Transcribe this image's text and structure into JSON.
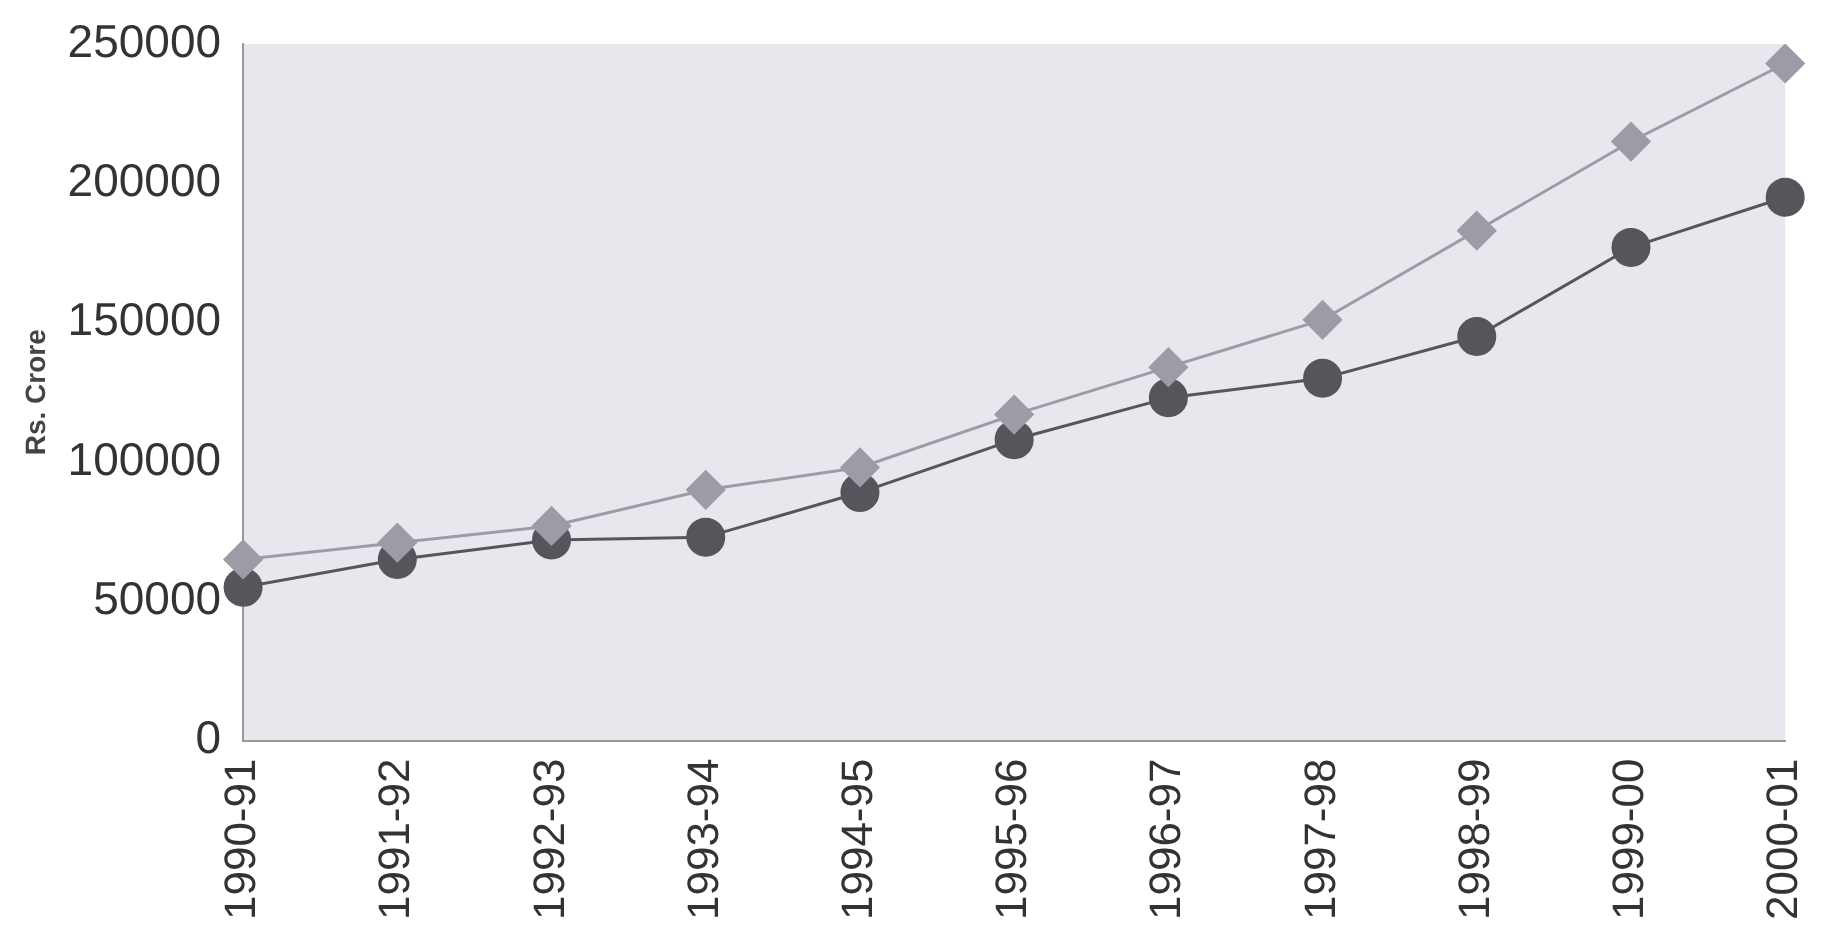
{
  "chart_data": {
    "type": "line",
    "ylabel": "Rs. Crore",
    "categories": [
      "1990-91",
      "1991-92",
      "1992-93",
      "1993-94",
      "1994-95",
      "1995-96",
      "1996-97",
      "1997-98",
      "1998-99",
      "1999-00",
      "2000-01"
    ],
    "series": [
      {
        "color": "#9c9ca6",
        "marker": "diamond",
        "values": [
          65000,
          71000,
          77000,
          90000,
          98000,
          117000,
          134000,
          151000,
          183000,
          215000,
          243000
        ]
      },
      {
        "color": "#55555c",
        "marker": "circle",
        "values": [
          55000,
          65000,
          72000,
          73000,
          89000,
          108000,
          123000,
          130000,
          145000,
          177000,
          195000
        ]
      }
    ],
    "ylim": [
      0,
      250000
    ],
    "yticks": [
      0,
      50000,
      100000,
      150000,
      200000,
      250000
    ],
    "grid": false,
    "legend": false,
    "line_style": "solid"
  }
}
